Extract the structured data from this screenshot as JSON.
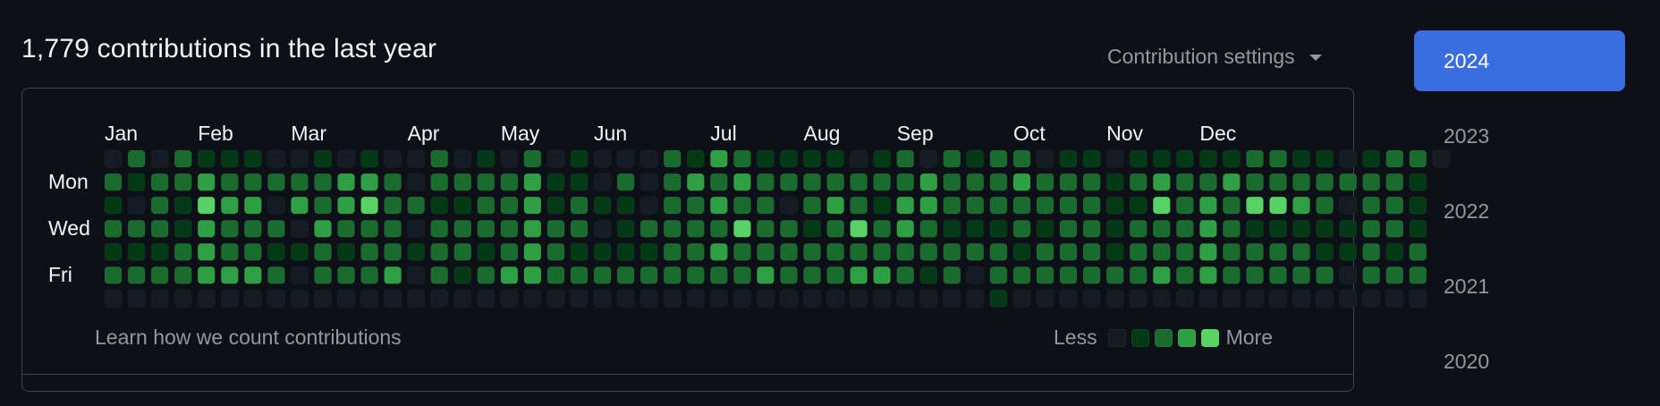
{
  "header": {
    "title": "1,779 contributions in the last year",
    "settings_label": "Contribution settings"
  },
  "graph": {
    "months": [
      "Jan",
      "Feb",
      "Mar",
      "Apr",
      "May",
      "Jun",
      "Jul",
      "Aug",
      "Sep",
      "Oct",
      "Nov",
      "Dec"
    ],
    "days": [
      "Mon",
      "Wed",
      "Fri"
    ],
    "learn_link": "Learn how we count contributions",
    "legend_less": "Less",
    "legend_more": "More",
    "level_colors": [
      "#151b23",
      "#033a16",
      "#196c2e",
      "#2ea043",
      "#56d364"
    ],
    "weeks": [
      "0212120",
      "2102120",
      "0222120",
      "2211220",
      "1343330",
      "1232230",
      "1232230",
      "0202120",
      "0230100",
      "1223220",
      "0332120",
      "1342220",
      "0222230",
      "0020100",
      "2212220",
      "0212210",
      "1222120",
      "0222230",
      "2333330",
      "0112220",
      "1122120",
      "0010120",
      "0211120",
      "0002120",
      "2222220",
      "1322220",
      "3232320",
      "2324220",
      "1222230",
      "1202220",
      "1221220",
      "1232220",
      "0224230",
      "1212230",
      "2233220",
      "0332210",
      "2221220",
      "1221200",
      "2221221",
      "2322120",
      "0221220",
      "1222220",
      "1222220",
      "0111120",
      "1212220",
      "1342230",
      "1222220",
      "1233330",
      "1322220",
      "2241220",
      "2241220",
      "1231220",
      "1221120",
      "0201100",
      "1222220",
      "2222120",
      "2111220",
      "0000000"
    ]
  },
  "years": [
    {
      "label": "2024",
      "active": true
    },
    {
      "label": "2023",
      "active": false
    },
    {
      "label": "2022",
      "active": false
    },
    {
      "label": "2021",
      "active": false
    },
    {
      "label": "2020",
      "active": false
    }
  ]
}
